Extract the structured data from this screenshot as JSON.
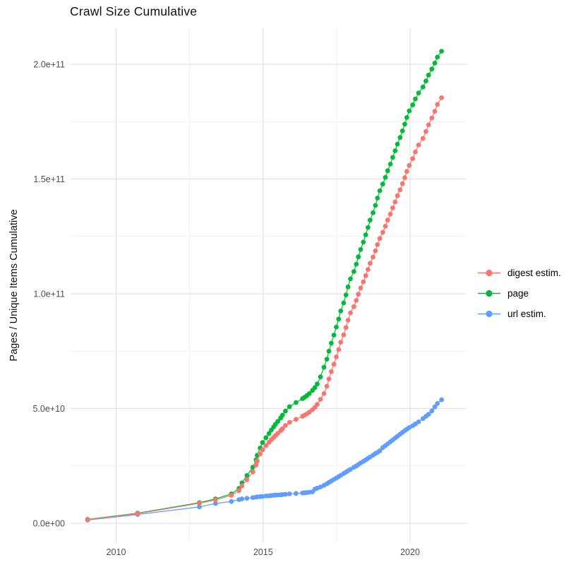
{
  "title": "Crawl Size Cumulative",
  "axes": {
    "y_label": "Pages / Unique Items Cumulative",
    "x_tick_labels": [
      "2010",
      "2015",
      "2020"
    ],
    "y_tick_labels": [
      "0.0e+00",
      "5.0e+10",
      "1.0e+11",
      "1.5e+11",
      "2.0e+11"
    ]
  },
  "legend": {
    "position": "right",
    "items": [
      {
        "label": "digest estim.",
        "color": "#F8766D"
      },
      {
        "label": "page",
        "color": "#00BA38"
      },
      {
        "label": "url estim.",
        "color": "#619CFF"
      }
    ]
  },
  "chart_data": {
    "type": "scatter",
    "title": "Crawl Size Cumulative",
    "xlabel": "",
    "ylabel": "Pages / Unique Items Cumulative",
    "x_unit": "year (decimal, crawl release date)",
    "value_unit": "items, stored as billions (1e9)",
    "xlim": [
      2008.4,
      2021.7
    ],
    "ylim_e9": [
      -9,
      216
    ],
    "x_ticks": [
      2010,
      2015,
      2020
    ],
    "x_minor_ticks": [
      2012.5,
      2017.5
    ],
    "y_ticks_e9": [
      0,
      50,
      100,
      150,
      200
    ],
    "y_minor_ticks_e9": [
      25,
      75,
      125,
      175
    ],
    "grid": true,
    "legend_position": "right",
    "draw_order": [
      "page",
      "url estim.",
      "digest estim."
    ],
    "marker_radius": 3.4,
    "x": [
      2009.03,
      2010.73,
      2012.83,
      2013.38,
      2013.92,
      2014.18,
      2014.28,
      2014.45,
      2014.65,
      2014.76,
      2014.8,
      2014.9,
      2014.98,
      2015.1,
      2015.2,
      2015.28,
      2015.36,
      2015.42,
      2015.5,
      2015.6,
      2015.66,
      2015.76,
      2015.9,
      2016.12,
      2016.34,
      2016.41,
      2016.49,
      2016.57,
      2016.68,
      2016.76,
      2016.84,
      2016.95,
      2017.07,
      2017.17,
      2017.24,
      2017.32,
      2017.41,
      2017.49,
      2017.57,
      2017.64,
      2017.74,
      2017.82,
      2017.89,
      2017.97,
      2018.09,
      2018.17,
      2018.24,
      2018.32,
      2018.41,
      2018.49,
      2018.57,
      2018.64,
      2018.74,
      2018.82,
      2018.89,
      2018.97,
      2019.07,
      2019.16,
      2019.24,
      2019.33,
      2019.41,
      2019.49,
      2019.57,
      2019.66,
      2019.74,
      2019.82,
      2019.89,
      2019.97,
      2020.09,
      2020.18,
      2020.29,
      2020.44,
      2020.54,
      2020.63,
      2020.74,
      2020.84,
      2020.93,
      2021.07
    ],
    "series": [
      {
        "name": "digest estim.",
        "color": "#F8766D",
        "values_e9": [
          1.6,
          4.2,
          8.7,
          10.2,
          12.2,
          14.2,
          16.3,
          19.0,
          22.4,
          25.4,
          27.2,
          30.2,
          32.0,
          33.8,
          35.3,
          36.4,
          37.4,
          38.2,
          39.2,
          40.4,
          41.2,
          42.6,
          44.0,
          45.3,
          46.6,
          47.1,
          47.7,
          48.4,
          49.5,
          50.5,
          51.8,
          54.0,
          56.5,
          59.7,
          62.9,
          66.1,
          69.3,
          72.5,
          75.7,
          78.9,
          82.1,
          85.3,
          88.5,
          91.7,
          94.4,
          97.1,
          99.8,
          102.5,
          105.2,
          107.9,
          110.6,
          113.3,
          116.0,
          118.7,
          121.4,
          124.1,
          126.8,
          129.4,
          132.1,
          134.7,
          137.4,
          140.0,
          142.7,
          145.3,
          148.0,
          150.6,
          153.3,
          155.9,
          158.9,
          161.8,
          164.8,
          167.7,
          170.7,
          173.6,
          176.6,
          179.5,
          182.5,
          185.4
        ]
      },
      {
        "name": "page",
        "color": "#00BA38",
        "values_e9": [
          1.7,
          4.4,
          9.0,
          10.6,
          12.8,
          15.2,
          17.6,
          20.8,
          24.4,
          27.6,
          29.6,
          32.8,
          35.2,
          37.3,
          39.1,
          40.6,
          42.0,
          43.1,
          44.4,
          45.9,
          47.1,
          48.9,
          50.8,
          52.6,
          54.3,
          54.9,
          55.6,
          56.5,
          57.9,
          59.1,
          60.7,
          63.8,
          68.0,
          71.5,
          75.0,
          78.5,
          82.0,
          85.5,
          89.0,
          92.5,
          96.0,
          99.5,
          103.0,
          106.5,
          109.7,
          112.9,
          116.1,
          119.3,
          122.5,
          125.7,
          128.9,
          132.1,
          135.3,
          138.5,
          141.7,
          144.9,
          147.8,
          150.7,
          153.6,
          156.5,
          159.4,
          162.3,
          165.2,
          168.1,
          171.0,
          173.9,
          176.8,
          179.7,
          182.3,
          184.9,
          187.5,
          190.1,
          192.7,
          195.3,
          197.9,
          200.5,
          203.1,
          205.7
        ]
      },
      {
        "name": "url estim.",
        "color": "#619CFF",
        "values_e9": [
          1.4,
          3.8,
          7.1,
          8.6,
          9.5,
          10.3,
          10.6,
          10.9,
          11.2,
          11.4,
          11.5,
          11.6,
          11.7,
          11.9,
          12.0,
          12.1,
          12.2,
          12.3,
          12.3,
          12.4,
          12.5,
          12.6,
          12.8,
          13.0,
          13.2,
          13.3,
          13.4,
          13.5,
          13.7,
          14.9,
          15.3,
          15.8,
          16.5,
          17.2,
          17.8,
          18.4,
          19.1,
          19.7,
          20.3,
          20.9,
          21.7,
          22.3,
          22.9,
          23.5,
          24.4,
          25.0,
          25.6,
          26.3,
          27.0,
          27.6,
          28.3,
          28.9,
          29.7,
          30.4,
          30.9,
          31.6,
          33.0,
          33.8,
          34.6,
          35.5,
          36.3,
          37.1,
          37.9,
          38.8,
          39.6,
          40.4,
          41.0,
          41.7,
          42.5,
          43.3,
          44.2,
          45.6,
          46.6,
          47.5,
          49.0,
          50.7,
          52.2,
          53.8
        ]
      }
    ]
  }
}
